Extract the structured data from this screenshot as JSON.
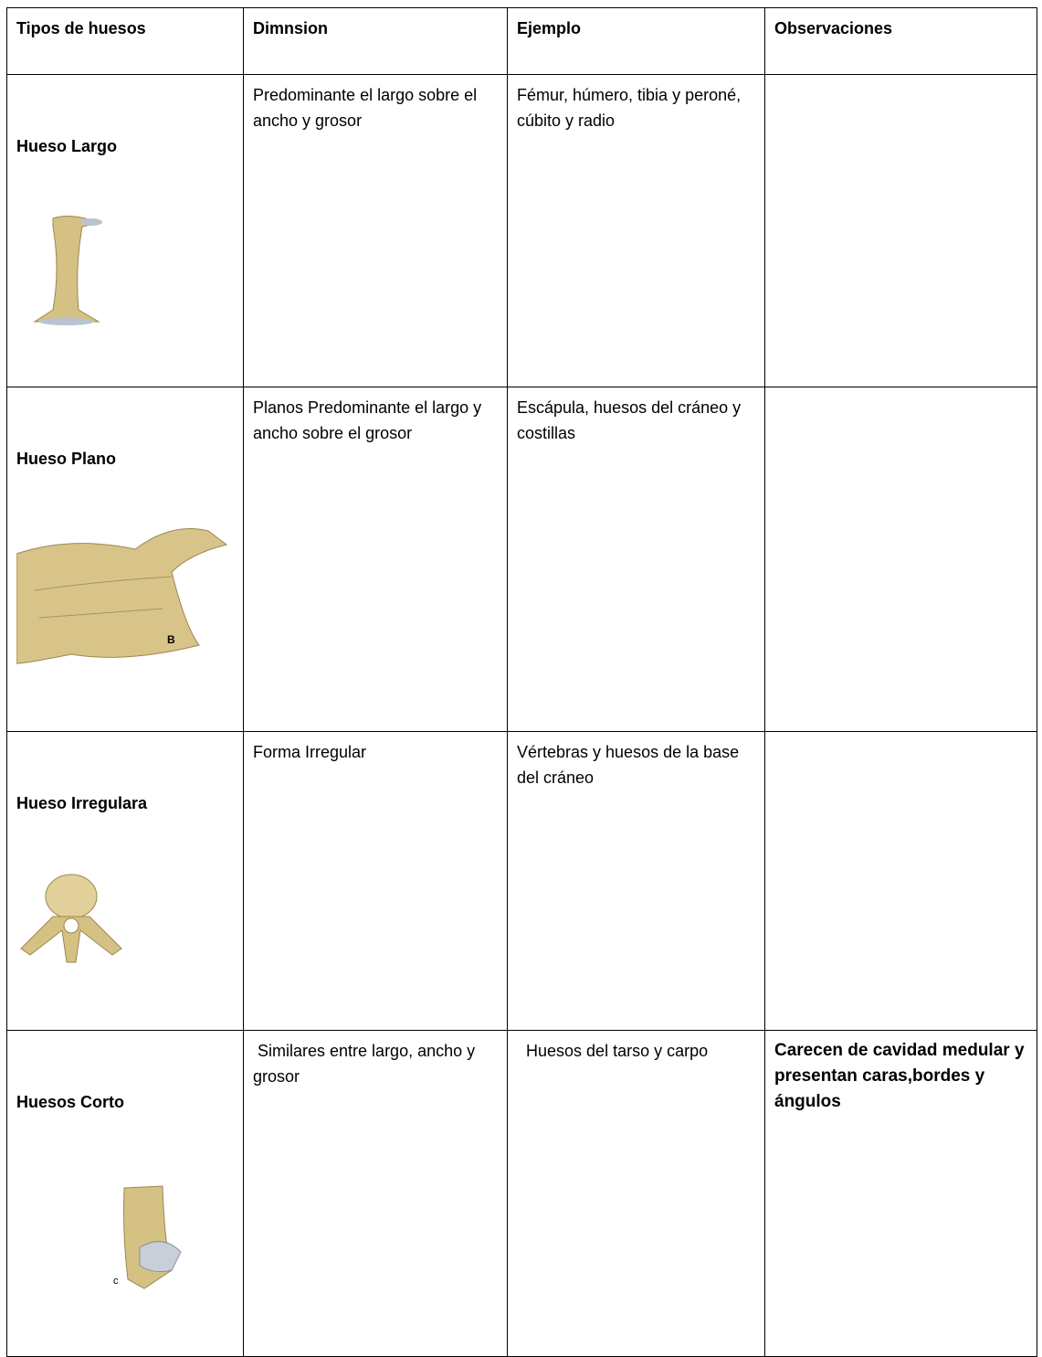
{
  "table": {
    "header": [
      "Tipos de huesos",
      "Dimnsion",
      "Ejemplo",
      "Observaciones"
    ],
    "rows": [
      {
        "tipo": "Hueso Largo",
        "dimension": "Predominante el largo sobre el ancho y grosor",
        "ejemplo": "Fémur, húmero, tibia y peroné, cúbito y radio"
      },
      {
        "tipo": "Hueso Plano",
        "dimension": "Planos Predominante el largo y ancho sobre el grosor",
        "ejemplo": "Escápula, huesos del cráneo y costillas",
        "image_label": "B"
      },
      {
        "tipo": "Hueso Irregulara",
        "dimension": "Forma Irregular",
        "ejemplo": "Vértebras y huesos de la base del cráneo"
      },
      {
        "tipo": "Huesos Corto",
        "dimension": " Similares entre largo, ancho y grosor",
        "ejemplo": "  Huesos del tarso y carpo",
        "observaciones": "Carecen de cavidad medular y presentan caras,bordes y ángulos",
        "image_label": "c"
      }
    ]
  }
}
